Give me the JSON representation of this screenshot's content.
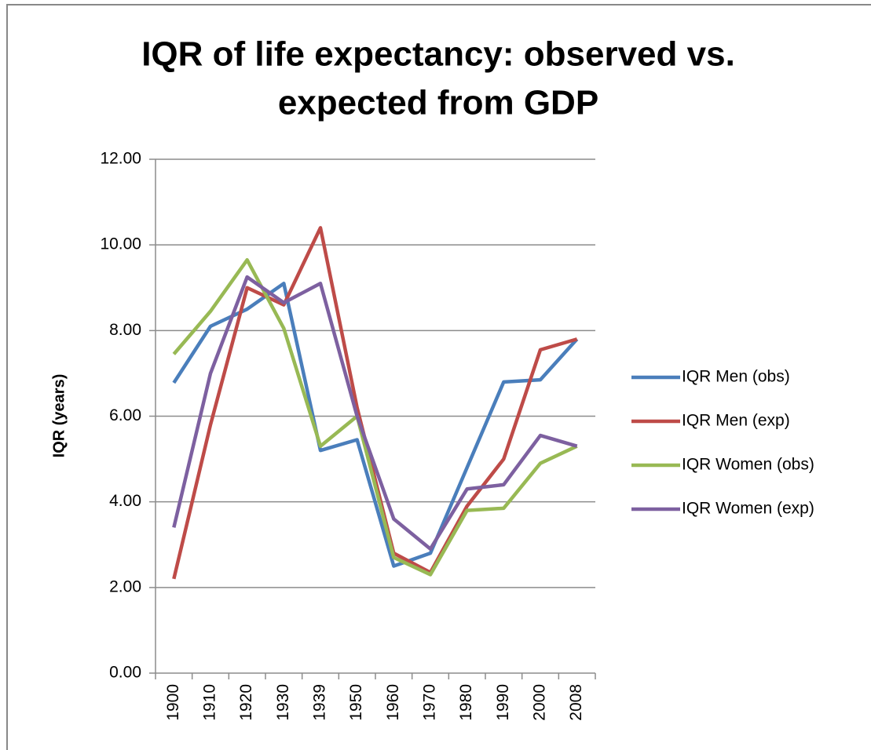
{
  "chart_data": {
    "type": "line",
    "title": [
      "IQR of life expectancy: observed vs.",
      "expected from GDP"
    ],
    "y_label": "IQR (years)",
    "categories": [
      "1900",
      "1910",
      "1920",
      "1930",
      "1939",
      "1950",
      "1960",
      "1970",
      "1980",
      "1990",
      "2000",
      "2008"
    ],
    "series": [
      {
        "name": "IQR Men (obs)",
        "color": "#4a7ebb",
        "values": [
          6.78,
          8.1,
          8.5,
          9.1,
          5.2,
          5.45,
          2.5,
          2.8,
          4.8,
          6.8,
          6.85,
          7.8
        ]
      },
      {
        "name": "IQR Men (exp)",
        "color": "#be4b48",
        "values": [
          2.2,
          5.8,
          9.0,
          8.6,
          10.4,
          6.2,
          2.8,
          2.35,
          3.9,
          5.0,
          7.55,
          7.8
        ]
      },
      {
        "name": "IQR Women (obs)",
        "color": "#98b954",
        "values": [
          7.45,
          8.45,
          9.65,
          8.05,
          5.3,
          6.0,
          2.7,
          2.3,
          3.8,
          3.85,
          4.9,
          5.3
        ]
      },
      {
        "name": "IQR Women (exp)",
        "color": "#7d60a0",
        "values": [
          3.4,
          7.0,
          9.25,
          8.65,
          9.1,
          6.0,
          3.6,
          2.9,
          4.3,
          4.4,
          5.55,
          5.3
        ]
      }
    ],
    "ylim": [
      0,
      12
    ],
    "yticks": [
      {
        "value": 0,
        "label": "0.00"
      },
      {
        "value": 2,
        "label": "2.00"
      },
      {
        "value": 4,
        "label": "4.00"
      },
      {
        "value": 6,
        "label": "6.00"
      },
      {
        "value": 8,
        "label": "8.00"
      },
      {
        "value": 10,
        "label": "10.00"
      },
      {
        "value": 12,
        "label": "12.00"
      }
    ],
    "grid": true,
    "legend": "right"
  }
}
